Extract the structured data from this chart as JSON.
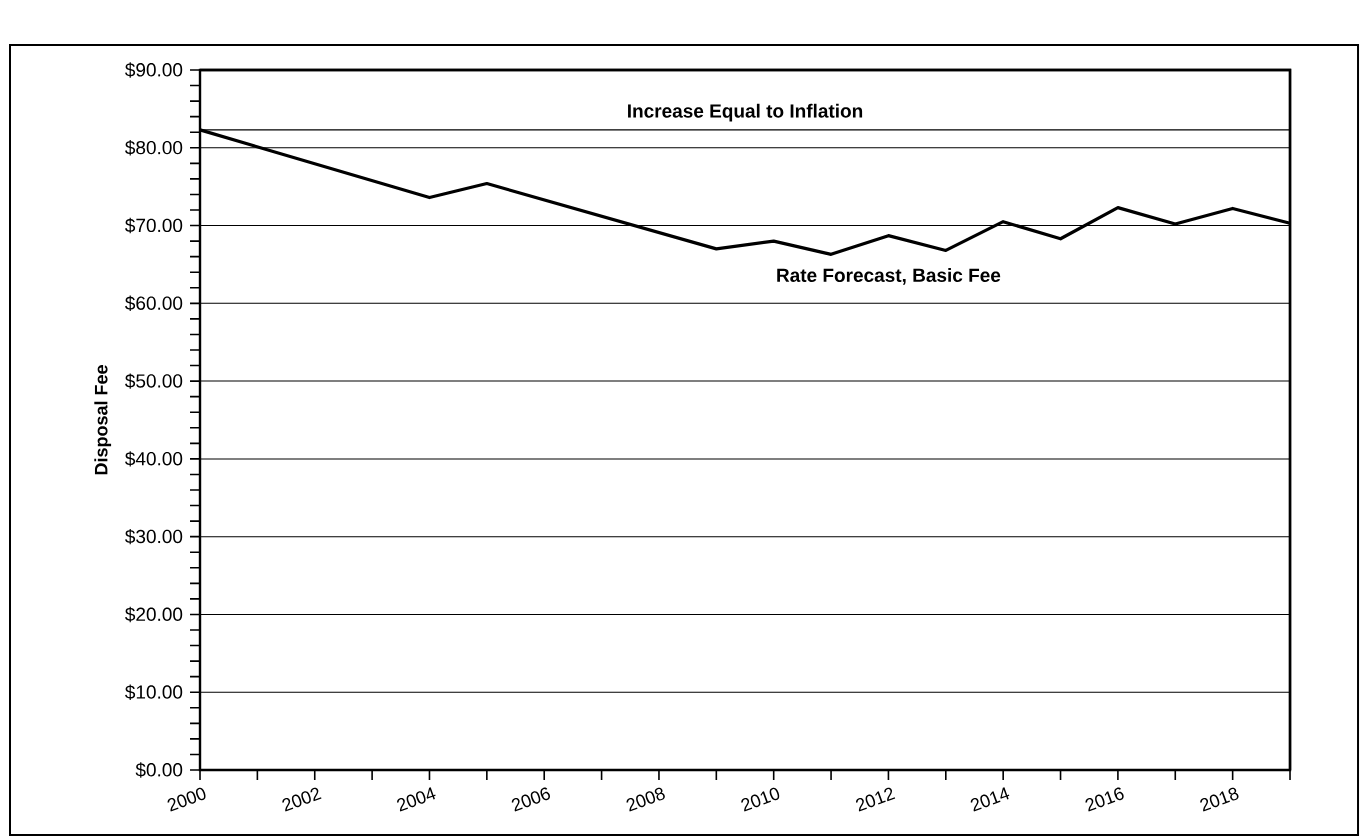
{
  "chart_data": {
    "type": "line",
    "ylabel": "Disposal Fee",
    "x": [
      2000,
      2004,
      2005,
      2009,
      2010,
      2011,
      2012,
      2013,
      2014,
      2015,
      2016,
      2017,
      2018,
      2019
    ],
    "series": [
      {
        "name": "Rate Forecast, Basic Fee",
        "color": "#000000",
        "values": [
          82.3,
          73.6,
          75.4,
          67.0,
          68.0,
          66.3,
          68.7,
          66.8,
          70.5,
          68.3,
          72.3,
          70.2,
          72.2,
          70.3
        ]
      }
    ],
    "ref_lines": [
      {
        "axis": "y",
        "value": 82.3,
        "label": "Increase Equal to Inflation",
        "color": "#000000"
      }
    ],
    "xlim": [
      2000,
      2019
    ],
    "ylim": [
      0,
      90
    ],
    "xticks": [
      2000,
      {
        "value": 2001,
        "label": null
      },
      2002,
      {
        "value": 2003,
        "label": null
      },
      2004,
      {
        "value": 2005,
        "label": null
      },
      2006,
      {
        "value": 2007,
        "label": null
      },
      2008,
      {
        "value": 2009,
        "label": null
      },
      2010,
      {
        "value": 2011,
        "label": null
      },
      2012,
      {
        "value": 2013,
        "label": null
      },
      2014,
      {
        "value": 2015,
        "label": null
      },
      2016,
      {
        "value": 2017,
        "label": null
      },
      2018,
      {
        "value": 2019,
        "label": null
      }
    ],
    "yticks": [
      {
        "value": 0,
        "label": "$0.00"
      },
      {
        "value": 2,
        "label": null
      },
      {
        "value": 4,
        "label": null
      },
      {
        "value": 6,
        "label": null
      },
      {
        "value": 8,
        "label": null
      },
      {
        "value": 10,
        "label": "$10.00"
      },
      {
        "value": 12,
        "label": null
      },
      {
        "value": 14,
        "label": null
      },
      {
        "value": 16,
        "label": null
      },
      {
        "value": 18,
        "label": null
      },
      {
        "value": 20,
        "label": "$20.00"
      },
      {
        "value": 22,
        "label": null
      },
      {
        "value": 24,
        "label": null
      },
      {
        "value": 26,
        "label": null
      },
      {
        "value": 28,
        "label": null
      },
      {
        "value": 30,
        "label": "$30.00"
      },
      {
        "value": 32,
        "label": null
      },
      {
        "value": 34,
        "label": null
      },
      {
        "value": 36,
        "label": null
      },
      {
        "value": 38,
        "label": null
      },
      {
        "value": 40,
        "label": "$40.00"
      },
      {
        "value": 42,
        "label": null
      },
      {
        "value": 44,
        "label": null
      },
      {
        "value": 46,
        "label": null
      },
      {
        "value": 48,
        "label": null
      },
      {
        "value": 50,
        "label": "$50.00"
      },
      {
        "value": 52,
        "label": null
      },
      {
        "value": 54,
        "label": null
      },
      {
        "value": 56,
        "label": null
      },
      {
        "value": 58,
        "label": null
      },
      {
        "value": 60,
        "label": "$60.00"
      },
      {
        "value": 62,
        "label": null
      },
      {
        "value": 64,
        "label": null
      },
      {
        "value": 66,
        "label": null
      },
      {
        "value": 68,
        "label": null
      },
      {
        "value": 70,
        "label": "$70.00"
      },
      {
        "value": 72,
        "label": null
      },
      {
        "value": 74,
        "label": null
      },
      {
        "value": 76,
        "label": null
      },
      {
        "value": 78,
        "label": null
      },
      {
        "value": 80,
        "label": "$80.00"
      },
      {
        "value": 82,
        "label": null
      },
      {
        "value": 84,
        "label": null
      },
      {
        "value": 86,
        "label": null
      },
      {
        "value": 88,
        "label": null
      },
      {
        "value": 90,
        "label": "$90.00"
      }
    ],
    "grid": "y"
  }
}
